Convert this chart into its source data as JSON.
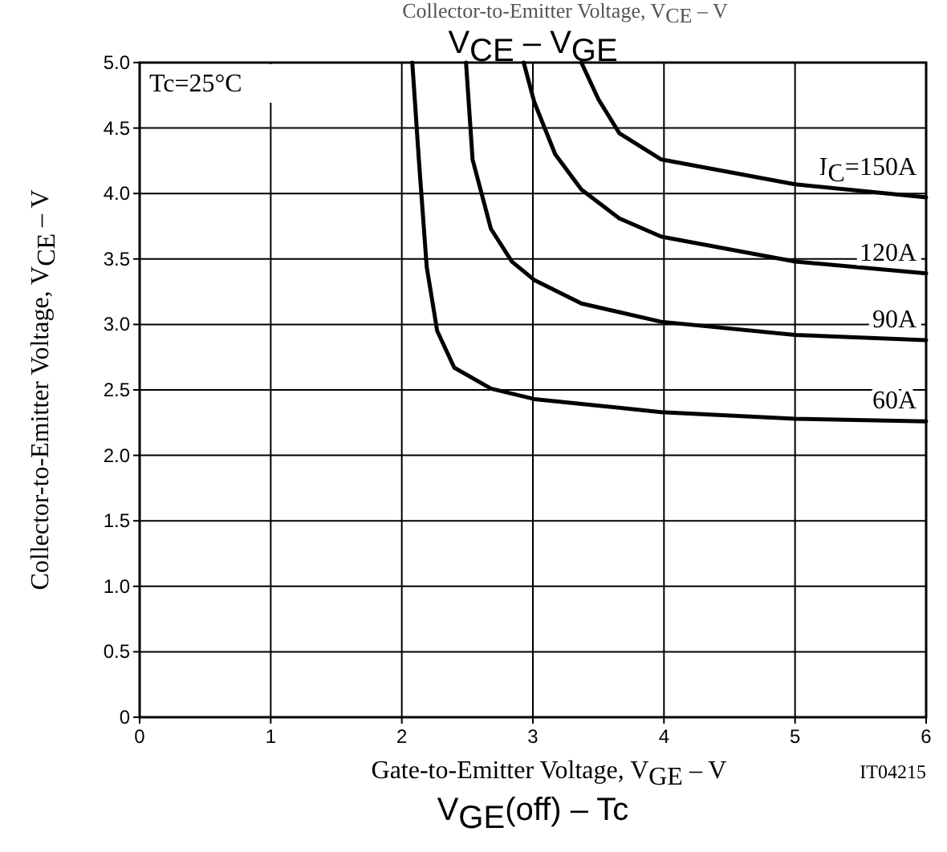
{
  "chart_data": {
    "type": "line",
    "title": "V$_{CE}$ – V$_{GE}$",
    "xlabel": "Gate-to-Emitter Voltage, V$_{GE}$ – V",
    "ylabel": "Collector-to-Emitter Voltage, V$_{CE}$ – V",
    "annotations": [
      "Tc=25°C",
      "IT04215",
      "Collector-to-Emitter Voltage, V$_{CE}$ – V",
      "V$_{GE}$(off) – Tc"
    ],
    "xlim": [
      0,
      6
    ],
    "ylim": [
      0,
      5
    ],
    "xticks": [
      0,
      1,
      2,
      3,
      4,
      5,
      6
    ],
    "yticks": [
      0,
      {
        "value": 0.5,
        "label": "0.5"
      },
      {
        "value": 1,
        "label": "1.0"
      },
      {
        "value": 1.5,
        "label": "1.5"
      },
      {
        "value": 2,
        "label": "2.0"
      },
      {
        "value": 2.5,
        "label": "2.5"
      },
      {
        "value": 3,
        "label": "3.0"
      },
      {
        "value": 3.5,
        "label": "3.5"
      },
      {
        "value": 4,
        "label": "4.0"
      },
      {
        "value": 4.5,
        "label": "4.5"
      },
      {
        "value": 5,
        "label": "5.0"
      }
    ],
    "grid": true,
    "marker": "none",
    "line_style": "solid",
    "series": [
      {
        "name": "I$_{C}$=150A",
        "color": "#000000",
        "x": [
          3.37,
          3.5,
          3.66,
          3.98,
          5.0,
          6.0
        ],
        "values": [
          5.0,
          4.72,
          4.46,
          4.26,
          4.07,
          3.97
        ]
      },
      {
        "name": "120A",
        "color": "#000000",
        "x": [
          2.93,
          3.01,
          3.17,
          3.37,
          3.66,
          3.98,
          5.0,
          6.0
        ],
        "values": [
          5.0,
          4.7,
          4.3,
          4.03,
          3.81,
          3.67,
          3.48,
          3.39
        ]
      },
      {
        "name": "90A",
        "color": "#000000",
        "x": [
          2.49,
          2.54,
          2.68,
          2.84,
          3.01,
          3.37,
          3.98,
          5.0,
          6.0
        ],
        "values": [
          5.0,
          4.26,
          3.73,
          3.48,
          3.34,
          3.16,
          3.02,
          2.92,
          2.88
        ]
      },
      {
        "name": "60A",
        "color": "#000000",
        "x": [
          2.08,
          2.13,
          2.19,
          2.27,
          2.4,
          2.68,
          3.01,
          3.98,
          5.0,
          6.0
        ],
        "values": [
          5.0,
          4.26,
          3.44,
          2.95,
          2.67,
          2.51,
          2.43,
          2.33,
          2.28,
          2.26
        ]
      }
    ]
  }
}
